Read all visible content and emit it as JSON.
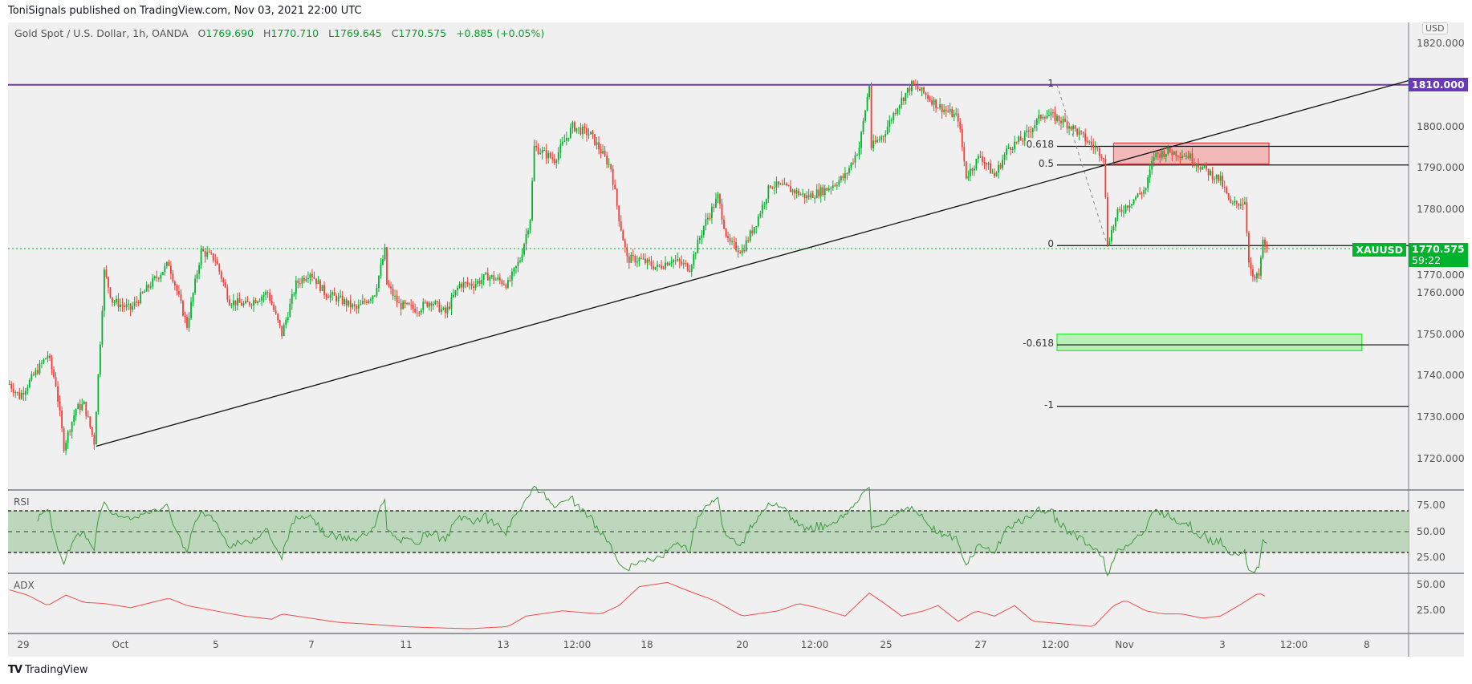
{
  "header": {
    "published": "ToniSignals published on TradingView.com, Nov 03, 2021 22:00 UTC"
  },
  "legend": {
    "symbol": "Gold Spot / U.S. Dollar, 1h, OANDA",
    "o_label": "O",
    "o": "1769.690",
    "h_label": "H",
    "h": "1770.710",
    "l_label": "L",
    "l": "1769.645",
    "c_label": "C",
    "c": "1770.575",
    "change": "+0.885 (+0.05%)"
  },
  "currency": "USD",
  "price_tag": {
    "symbol": "XAUUSD",
    "price": "1770.575",
    "countdown": "59:22",
    "color": "#00b32c"
  },
  "level_tag": {
    "price": "1810.000",
    "color": "#673ab7"
  },
  "footer": {
    "brand": "TradingView"
  },
  "chart_data": {
    "type": "candlestick",
    "title": "Gold Spot / U.S. Dollar, 1h, OANDA",
    "ylim": [
      1715,
      1822
    ],
    "y_ticks": [
      "1820.000",
      "1810.000",
      "1800.000",
      "1790.000",
      "1780.000",
      "1770.000",
      "1760.000",
      "1750.000",
      "1740.000",
      "1730.000",
      "1720.000"
    ],
    "x_ticks": [
      "29",
      "Oct",
      "5",
      "7",
      "11",
      "13",
      "12:00",
      "18",
      "20",
      "12:00",
      "25",
      "27",
      "12:00",
      "Nov",
      "3",
      "12:00",
      "8"
    ],
    "close_path_bar_price": [
      [
        0,
        1738
      ],
      [
        5,
        1735
      ],
      [
        12,
        1740
      ],
      [
        19,
        1745
      ],
      [
        23,
        1738
      ],
      [
        27,
        1723
      ],
      [
        33,
        1732
      ],
      [
        37,
        1733
      ],
      [
        42,
        1724
      ],
      [
        44,
        1740
      ],
      [
        47,
        1765
      ],
      [
        51,
        1758
      ],
      [
        60,
        1756
      ],
      [
        70,
        1762
      ],
      [
        79,
        1767
      ],
      [
        88,
        1752
      ],
      [
        95,
        1770
      ],
      [
        102,
        1768
      ],
      [
        109,
        1758
      ],
      [
        117,
        1757
      ],
      [
        128,
        1760
      ],
      [
        135,
        1750
      ],
      [
        142,
        1762
      ],
      [
        149,
        1765
      ],
      [
        156,
        1760
      ],
      [
        165,
        1758
      ],
      [
        172,
        1756
      ],
      [
        181,
        1760
      ],
      [
        186,
        1770
      ],
      [
        187,
        1762
      ],
      [
        193,
        1757
      ],
      [
        202,
        1756
      ],
      [
        209,
        1758
      ],
      [
        216,
        1755
      ],
      [
        223,
        1762
      ],
      [
        230,
        1762
      ],
      [
        237,
        1764
      ],
      [
        247,
        1762
      ],
      [
        253,
        1768
      ],
      [
        258,
        1778
      ],
      [
        260,
        1795
      ],
      [
        270,
        1792
      ],
      [
        279,
        1800
      ],
      [
        288,
        1798
      ],
      [
        298,
        1790
      ],
      [
        302,
        1778
      ],
      [
        306,
        1768
      ],
      [
        312,
        1768
      ],
      [
        321,
        1766
      ],
      [
        328,
        1768
      ],
      [
        337,
        1766
      ],
      [
        344,
        1776
      ],
      [
        351,
        1783
      ],
      [
        356,
        1772
      ],
      [
        363,
        1770
      ],
      [
        370,
        1777
      ],
      [
        377,
        1786
      ],
      [
        386,
        1785
      ],
      [
        395,
        1783
      ],
      [
        405,
        1785
      ],
      [
        414,
        1788
      ],
      [
        421,
        1795
      ],
      [
        426,
        1810
      ],
      [
        427,
        1795
      ],
      [
        433,
        1798
      ],
      [
        440,
        1805
      ],
      [
        447,
        1810
      ],
      [
        453,
        1808
      ],
      [
        460,
        1805
      ],
      [
        470,
        1802
      ],
      [
        474,
        1788
      ],
      [
        481,
        1793
      ],
      [
        488,
        1788
      ],
      [
        495,
        1795
      ],
      [
        502,
        1797
      ],
      [
        512,
        1803
      ],
      [
        519,
        1802
      ],
      [
        526,
        1800
      ],
      [
        535,
        1796
      ],
      [
        542,
        1793
      ],
      [
        544,
        1772
      ],
      [
        549,
        1779
      ],
      [
        558,
        1783
      ],
      [
        563,
        1785
      ],
      [
        567,
        1793
      ],
      [
        574,
        1794
      ],
      [
        584,
        1793
      ],
      [
        591,
        1790
      ],
      [
        600,
        1787
      ],
      [
        605,
        1781
      ],
      [
        612,
        1782
      ],
      [
        614,
        1768
      ],
      [
        616,
        1763
      ],
      [
        619,
        1764
      ],
      [
        621,
        1772
      ],
      [
        623,
        1770.575
      ]
    ],
    "horizontal_line": {
      "price": 1810,
      "color": "#673ab7"
    },
    "trendline": {
      "from": [
        43,
        1723
      ],
      "to": [
        693,
        1811
      ]
    },
    "fibonacci": {
      "start_bar": 519,
      "diag_end_bar": 544,
      "levels": [
        {
          "label": "1",
          "price": 1810
        },
        {
          "label": "0.618",
          "price": 1795.2
        },
        {
          "label": "0.5",
          "price": 1790.7
        },
        {
          "label": "0",
          "price": 1771.3
        },
        {
          "label": "-0.618",
          "price": 1747.4
        },
        {
          "label": "-1",
          "price": 1732.6
        }
      ]
    },
    "zones": [
      {
        "name": "resistance",
        "bar_from": 547,
        "bar_to": 624,
        "price_top": 1796,
        "price_bottom": 1791,
        "color": "#f4a6a6"
      },
      {
        "name": "support",
        "bar_from": 519,
        "bar_to": 670,
        "price_top": 1750,
        "price_bottom": 1746,
        "color": "#a6f0a6"
      }
    ],
    "rsi": {
      "label": "RSI",
      "period": 14,
      "bands": [
        70,
        50,
        30
      ],
      "ticks": [
        "75.00",
        "50.00",
        "25.00"
      ]
    },
    "adx": {
      "label": "ADX",
      "ticks": [
        "50.00",
        "25.00"
      ],
      "path_bar_value": [
        [
          0,
          45
        ],
        [
          9,
          40
        ],
        [
          19,
          30
        ],
        [
          28,
          40
        ],
        [
          37,
          33
        ],
        [
          47,
          32
        ],
        [
          60,
          28
        ],
        [
          79,
          37
        ],
        [
          88,
          30
        ],
        [
          102,
          25
        ],
        [
          116,
          20
        ],
        [
          130,
          17
        ],
        [
          135,
          22
        ],
        [
          149,
          18
        ],
        [
          163,
          14
        ],
        [
          181,
          12
        ],
        [
          195,
          10
        ],
        [
          209,
          9
        ],
        [
          228,
          8
        ],
        [
          247,
          10
        ],
        [
          256,
          20
        ],
        [
          274,
          25
        ],
        [
          293,
          22
        ],
        [
          302,
          30
        ],
        [
          312,
          48
        ],
        [
          326,
          52
        ],
        [
          335,
          45
        ],
        [
          349,
          35
        ],
        [
          363,
          20
        ],
        [
          381,
          25
        ],
        [
          391,
          32
        ],
        [
          400,
          28
        ],
        [
          414,
          20
        ],
        [
          426,
          42
        ],
        [
          435,
          30
        ],
        [
          442,
          20
        ],
        [
          453,
          25
        ],
        [
          460,
          30
        ],
        [
          470,
          15
        ],
        [
          479,
          25
        ],
        [
          488,
          20
        ],
        [
          498,
          30
        ],
        [
          507,
          15
        ],
        [
          526,
          12
        ],
        [
          537,
          10
        ],
        [
          547,
          30
        ],
        [
          553,
          35
        ],
        [
          563,
          25
        ],
        [
          572,
          22
        ],
        [
          581,
          22
        ],
        [
          591,
          18
        ],
        [
          600,
          20
        ],
        [
          609,
          30
        ],
        [
          619,
          42
        ],
        [
          623,
          38
        ]
      ]
    }
  }
}
